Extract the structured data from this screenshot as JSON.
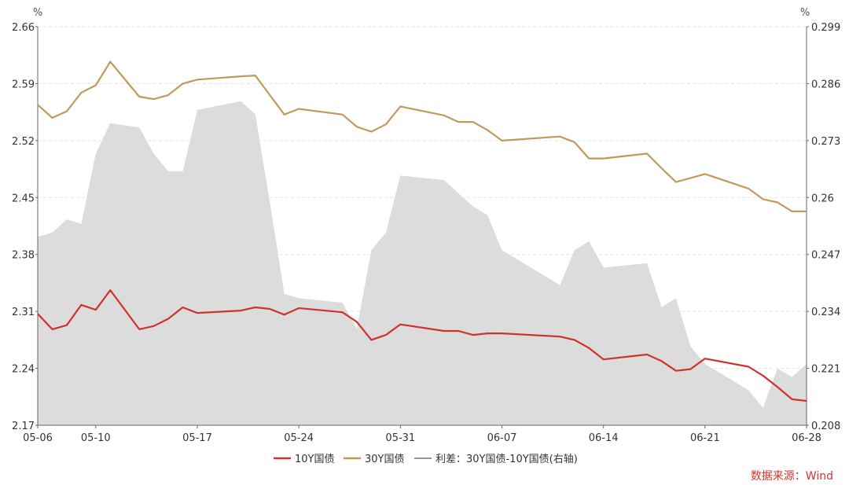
{
  "chart_data": {
    "type": "line",
    "left_axis": {
      "unit": "%",
      "ylim": [
        2.17,
        2.66
      ],
      "ticks": [
        "2.66",
        "2.59",
        "2.52",
        "2.45",
        "2.38",
        "2.31",
        "2.24",
        "2.17"
      ]
    },
    "right_axis": {
      "unit": "%",
      "ylim": [
        0.208,
        0.299
      ],
      "ticks": [
        "0.299",
        "0.286",
        "0.273",
        "0.26",
        "0.247",
        "0.234",
        "0.221",
        "0.208"
      ]
    },
    "x_ticks": [
      "05-06",
      "05-10",
      "05-17",
      "05-24",
      "05-31",
      "06-07",
      "06-14",
      "06-21",
      "06-28"
    ],
    "x": [
      "05-06",
      "05-07",
      "05-08",
      "05-09",
      "05-10",
      "05-11",
      "05-13",
      "05-14",
      "05-15",
      "05-16",
      "05-17",
      "05-20",
      "05-21",
      "05-22",
      "05-23",
      "05-24",
      "05-27",
      "05-28",
      "05-29",
      "05-30",
      "05-31",
      "06-03",
      "06-04",
      "06-05",
      "06-06",
      "06-07",
      "06-11",
      "06-12",
      "06-13",
      "06-14",
      "06-17",
      "06-18",
      "06-19",
      "06-20",
      "06-21",
      "06-24",
      "06-25",
      "06-26",
      "06-27",
      "06-28"
    ],
    "series": [
      {
        "name": "10Y国债",
        "axis": "left",
        "color": "#d0312d",
        "values": [
          2.307,
          2.288,
          2.293,
          2.318,
          2.312,
          2.336,
          2.288,
          2.292,
          2.301,
          2.315,
          2.308,
          2.311,
          2.315,
          2.313,
          2.306,
          2.314,
          2.309,
          2.297,
          2.275,
          2.281,
          2.294,
          2.286,
          2.286,
          2.281,
          2.283,
          2.283,
          2.279,
          2.275,
          2.265,
          2.251,
          2.257,
          2.249,
          2.237,
          2.239,
          2.252,
          2.242,
          2.231,
          2.217,
          2.202,
          2.2
        ]
      },
      {
        "name": "30Y国债",
        "axis": "left",
        "color": "#c19a5b",
        "values": [
          2.564,
          2.548,
          2.556,
          2.579,
          2.588,
          2.617,
          2.574,
          2.571,
          2.576,
          2.59,
          2.595,
          2.599,
          2.6,
          2.576,
          2.552,
          2.559,
          2.552,
          2.537,
          2.531,
          2.54,
          2.562,
          2.551,
          2.543,
          2.543,
          2.533,
          2.52,
          2.525,
          2.518,
          2.498,
          2.498,
          2.504,
          2.486,
          2.469,
          2.474,
          2.479,
          2.461,
          2.448,
          2.444,
          2.433,
          2.433
        ]
      },
      {
        "name": "利差：30Y国债-10Y国债(右轴)",
        "axis": "right",
        "type": "area",
        "color": "#dcdcdc",
        "values": [
          0.251,
          0.252,
          0.255,
          0.254,
          0.27,
          0.277,
          0.276,
          0.27,
          0.266,
          0.266,
          0.28,
          0.282,
          0.279,
          0.259,
          0.238,
          0.237,
          0.236,
          0.23,
          0.248,
          0.252,
          0.265,
          0.264,
          0.261,
          0.258,
          0.256,
          0.248,
          0.24,
          0.248,
          0.25,
          0.244,
          0.245,
          0.235,
          0.237,
          0.226,
          0.222,
          0.216,
          0.212,
          0.221,
          0.219,
          0.222
        ]
      }
    ],
    "grid": "horizontal dashed",
    "legend_position": "bottom-center"
  },
  "source_label": "数据来源：Wind"
}
